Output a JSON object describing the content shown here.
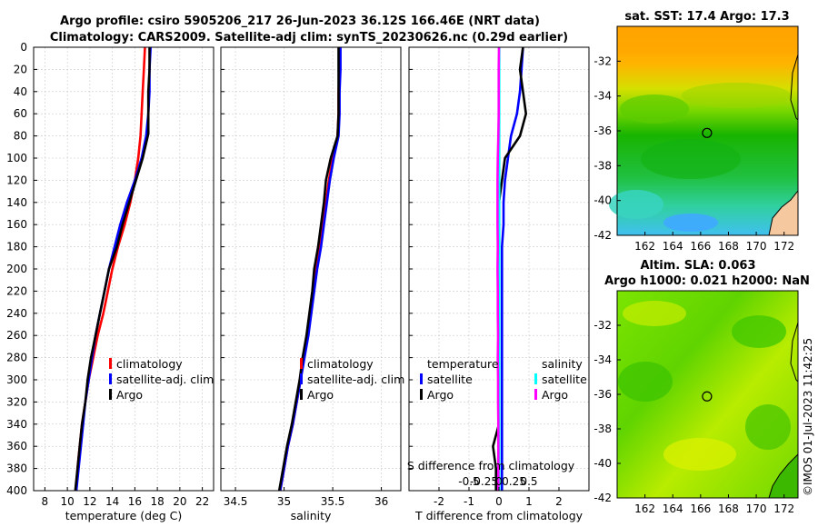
{
  "titles": {
    "line1": "Argo profile: csiro 5905206_217 26-Jun-2023 36.12S 166.46E (NRT data)",
    "line2": "Climatology: CARS2009. Satellite-adj clim: synTS_20230626.nc (0.29d earlier)"
  },
  "watermark": "©IMOS 01-Jul-2023 11:42:25",
  "colors": {
    "climatology": "#ff0000",
    "satellite": "#0000ff",
    "argo": "#000000",
    "sat_salinity": "#00ffff",
    "argo_salinity_diff": "#ff00ff"
  },
  "chart_data": [
    {
      "type": "line",
      "name": "temperature-profile",
      "xlabel": "temperature (deg C)",
      "ylabel": "",
      "xlim": [
        7,
        23
      ],
      "ylim": [
        0,
        400
      ],
      "y_reversed": true,
      "xticks": [
        8,
        10,
        12,
        14,
        16,
        18,
        20,
        22
      ],
      "yticks": [
        0,
        20,
        40,
        60,
        80,
        100,
        120,
        140,
        160,
        180,
        200,
        220,
        240,
        260,
        280,
        300,
        320,
        340,
        360,
        380,
        400
      ],
      "legend": [
        "climatology",
        "satellite-adj. clim",
        "Argo"
      ],
      "series": [
        {
          "name": "climatology",
          "color": "#ff0000",
          "x": [
            16.9,
            16.8,
            16.7,
            16.6,
            16.5,
            16.3,
            16.0,
            15.6,
            15.1,
            14.5,
            14.0,
            13.6,
            13.2,
            12.7,
            12.3,
            11.9,
            11.6,
            11.3,
            11.1,
            10.9,
            10.8
          ],
          "y": [
            0,
            20,
            40,
            60,
            80,
            100,
            120,
            140,
            160,
            180,
            200,
            220,
            240,
            260,
            280,
            300,
            320,
            340,
            360,
            380,
            400
          ]
        },
        {
          "name": "satellite-adj. clim",
          "color": "#0000ff",
          "x": [
            17.4,
            17.3,
            17.3,
            17.2,
            17.0,
            16.6,
            16.0,
            15.3,
            14.7,
            14.2,
            13.7,
            13.3,
            12.9,
            12.5,
            12.2,
            11.9,
            11.6,
            11.4,
            11.2,
            11.0,
            10.8
          ],
          "y": [
            0,
            20,
            40,
            60,
            80,
            100,
            120,
            140,
            160,
            180,
            200,
            220,
            240,
            260,
            280,
            300,
            320,
            340,
            360,
            380,
            400
          ]
        },
        {
          "name": "Argo",
          "color": "#000000",
          "x": [
            17.3,
            17.3,
            17.2,
            17.2,
            17.2,
            16.7,
            16.1,
            15.5,
            14.9,
            14.4,
            13.7,
            13.3,
            12.9,
            12.5,
            12.1,
            11.8,
            11.6,
            11.3,
            11.1,
            10.9,
            10.7
          ],
          "y": [
            0,
            20,
            40,
            60,
            78,
            100,
            120,
            140,
            160,
            180,
            200,
            220,
            240,
            260,
            280,
            300,
            320,
            340,
            360,
            380,
            400
          ]
        }
      ]
    },
    {
      "type": "line",
      "name": "salinity-profile",
      "xlabel": "salinity",
      "ylabel": "",
      "xlim": [
        34.35,
        36.2
      ],
      "ylim": [
        0,
        400
      ],
      "y_reversed": true,
      "xticks": [
        34.5,
        35,
        35.5,
        36
      ],
      "legend": [
        "climatology",
        "satellite-adj. clim",
        "Argo"
      ],
      "series": [
        {
          "name": "climatology",
          "color": "#ff0000",
          "x": [
            35.57,
            35.57,
            35.56,
            35.56,
            35.55,
            35.5,
            35.46,
            35.43,
            35.4,
            35.37,
            35.33,
            35.3,
            35.27,
            35.24,
            35.2,
            35.17,
            35.13,
            35.09,
            35.04,
            35.0,
            34.96
          ],
          "y": [
            0,
            20,
            40,
            60,
            80,
            100,
            120,
            140,
            160,
            180,
            200,
            220,
            240,
            260,
            280,
            300,
            320,
            340,
            360,
            380,
            400
          ]
        },
        {
          "name": "satellite-adj. clim",
          "color": "#0000ff",
          "x": [
            35.58,
            35.58,
            35.57,
            35.57,
            35.56,
            35.51,
            35.47,
            35.44,
            35.41,
            35.38,
            35.34,
            35.31,
            35.28,
            35.25,
            35.21,
            35.17,
            35.13,
            35.09,
            35.04,
            35.0,
            34.96
          ],
          "y": [
            0,
            20,
            40,
            60,
            80,
            100,
            120,
            140,
            160,
            180,
            200,
            220,
            240,
            260,
            280,
            300,
            320,
            340,
            360,
            380,
            400
          ]
        },
        {
          "name": "Argo",
          "color": "#000000",
          "x": [
            35.56,
            35.56,
            35.56,
            35.56,
            35.55,
            35.48,
            35.43,
            35.41,
            35.38,
            35.35,
            35.31,
            35.29,
            35.26,
            35.23,
            35.19,
            35.16,
            35.12,
            35.08,
            35.03,
            34.99,
            34.95
          ],
          "y": [
            0,
            20,
            40,
            60,
            80,
            100,
            120,
            140,
            160,
            180,
            200,
            220,
            240,
            260,
            280,
            300,
            320,
            340,
            360,
            380,
            400
          ]
        }
      ]
    },
    {
      "type": "line",
      "name": "difference-profile",
      "xlabel": "T difference from climatology",
      "top_label": "S difference from climatology",
      "xlim": [
        -3,
        3
      ],
      "ylim": [
        0,
        400
      ],
      "y_reversed": true,
      "xticks": [
        -2,
        -1,
        0,
        1,
        2
      ],
      "xticklabels": [
        "-2",
        "-1",
        "0",
        "1",
        "2"
      ],
      "s_ticks": [
        -0.5,
        -0.25,
        0,
        0.25,
        0.5
      ],
      "s_ticklabels": [
        "-0.5",
        "-0.25",
        "0",
        "0.25",
        "0.5"
      ],
      "legend_temperature": {
        "title": "temperature",
        "items": [
          "satellite",
          "Argo"
        ]
      },
      "legend_salinity": {
        "title": "salinity",
        "items": [
          "satellite",
          "Argo"
        ]
      },
      "series": [
        {
          "name": "T satellite",
          "color": "#0000ff",
          "x": [
            0.8,
            0.75,
            0.7,
            0.6,
            0.4,
            0.3,
            0.2,
            0.15,
            0.15,
            0.1,
            0.1,
            0.1,
            0.1,
            0.1,
            0.1,
            0.1,
            0.1,
            0.1,
            0.1,
            0.1,
            0.1
          ],
          "y": [
            0,
            20,
            40,
            60,
            80,
            100,
            120,
            140,
            160,
            180,
            200,
            220,
            240,
            260,
            280,
            300,
            320,
            340,
            360,
            380,
            400
          ]
        },
        {
          "name": "T Argo",
          "color": "#000000",
          "x": [
            0.8,
            0.7,
            0.8,
            0.9,
            0.7,
            0.2,
            0.1,
            0.0,
            0.0,
            0.0,
            0.0,
            0.0,
            0.0,
            0.0,
            0.0,
            0.0,
            0.0,
            0.0,
            -0.2,
            -0.1,
            -0.1
          ],
          "y": [
            0,
            20,
            40,
            60,
            80,
            100,
            120,
            140,
            160,
            180,
            200,
            220,
            240,
            260,
            280,
            300,
            320,
            340,
            360,
            380,
            400
          ]
        },
        {
          "name": "S satellite",
          "color": "#00ffff",
          "x": [
            0.01,
            0.01,
            0.01,
            0.01,
            0.01,
            0.01,
            0.01,
            0.01,
            0.01,
            0.01,
            0.01,
            0.01,
            0.01,
            0.01,
            0.01,
            0.01,
            0.01,
            0.01,
            0.01,
            0.01,
            0.01
          ],
          "y": [
            0,
            20,
            40,
            60,
            80,
            100,
            120,
            140,
            160,
            180,
            200,
            220,
            240,
            260,
            280,
            300,
            320,
            340,
            360,
            380,
            400
          ]
        },
        {
          "name": "S Argo",
          "color": "#ff00ff",
          "x": [
            0.0,
            -0.01,
            -0.01,
            -0.01,
            -0.02,
            -0.04,
            -0.05,
            -0.05,
            -0.05,
            -0.04,
            -0.05,
            -0.04,
            -0.04,
            -0.03,
            -0.04,
            -0.03,
            -0.03,
            -0.02,
            -0.02,
            -0.02,
            -0.02
          ],
          "y": [
            0,
            20,
            40,
            60,
            80,
            100,
            120,
            140,
            160,
            180,
            200,
            220,
            240,
            260,
            280,
            300,
            320,
            340,
            360,
            380,
            400
          ]
        }
      ]
    },
    {
      "type": "heatmap",
      "name": "sst-map",
      "title": "sat. SST: 17.4 Argo: 17.3",
      "xlim": [
        160,
        173
      ],
      "ylim": [
        -42,
        -30
      ],
      "xticks": [
        162,
        164,
        166,
        168,
        170,
        172
      ],
      "yticks": [
        -32,
        -34,
        -36,
        -38,
        -40,
        -42
      ],
      "marker": {
        "lon": 166.46,
        "lat": -36.12
      }
    },
    {
      "type": "heatmap",
      "name": "sla-map",
      "title": "Altim. SLA: 0.063",
      "subtitle": "Argo h1000: 0.021 h2000: NaN",
      "xlim": [
        160,
        173
      ],
      "ylim": [
        -42,
        -30
      ],
      "xticks": [
        162,
        164,
        166,
        168,
        170,
        172
      ],
      "yticks": [
        -32,
        -34,
        -36,
        -38,
        -40,
        -42
      ],
      "marker": {
        "lon": 166.46,
        "lat": -36.12
      }
    }
  ]
}
